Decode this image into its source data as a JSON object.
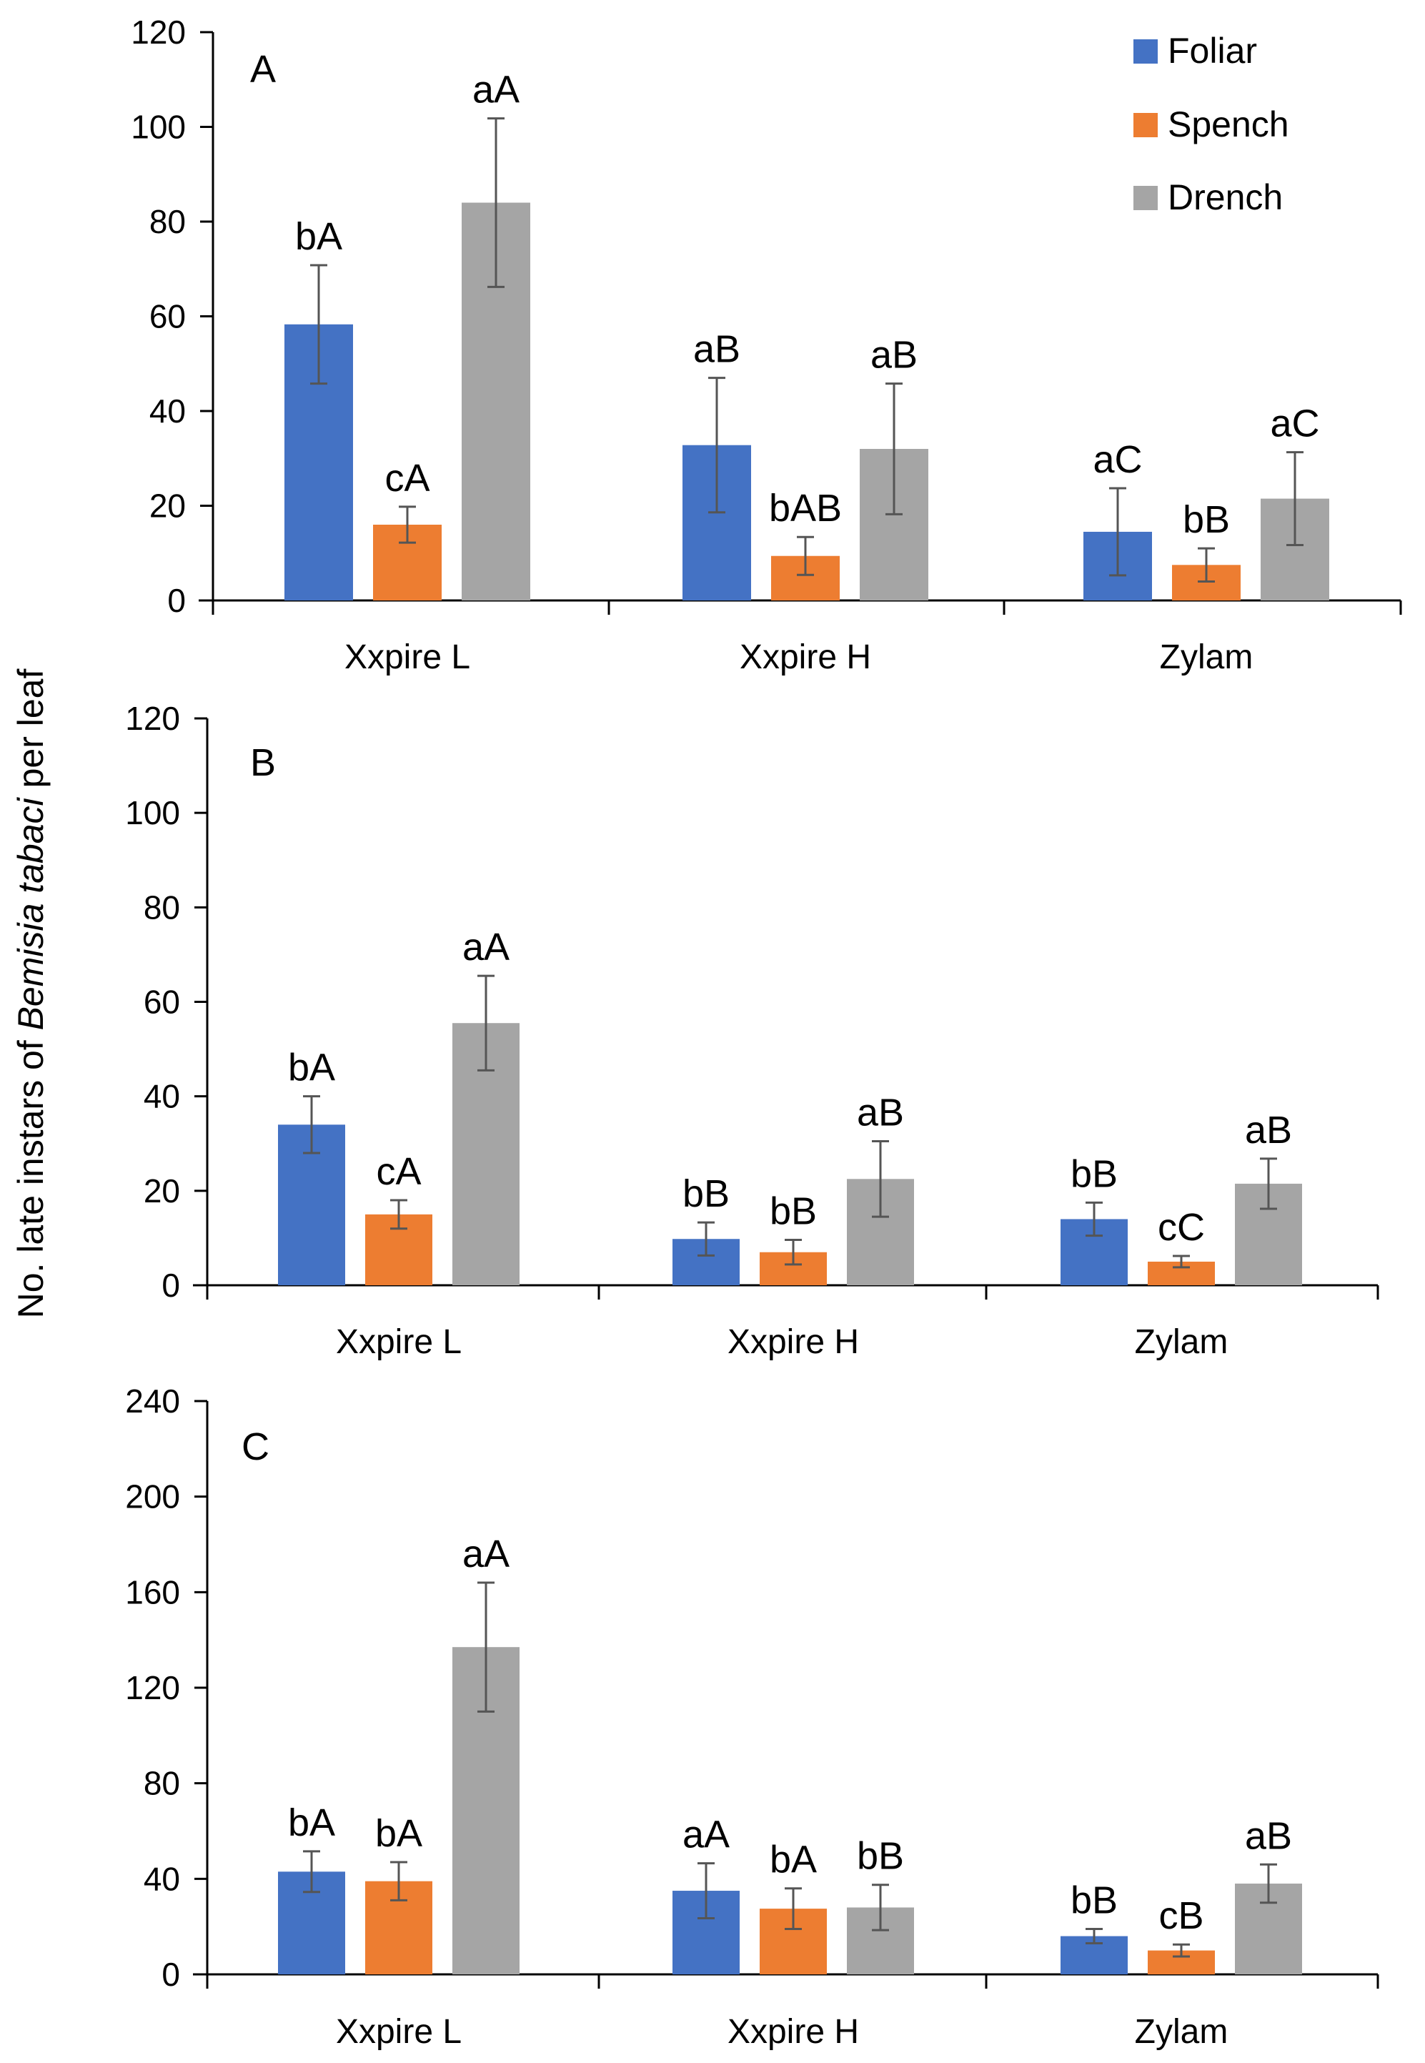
{
  "chart_data": {
    "type": "bar",
    "ylabel_parts": [
      "No. late instars of ",
      "Bemisia tabaci",
      " per leaf"
    ],
    "legend": {
      "placement": "top-right",
      "entries": [
        "Foliar",
        "Spench",
        "Drench"
      ]
    },
    "series_colors": [
      "#4472C4",
      "#ED7D31",
      "#A5A5A5"
    ],
    "panels": [
      {
        "label": "A",
        "categories": [
          "Xxpire L",
          "Xxpire H",
          "Zylam"
        ],
        "ylim": [
          0,
          120
        ],
        "yticks": [
          "0",
          "20",
          "40",
          "60",
          "80",
          "100",
          "120"
        ],
        "series": [
          {
            "name": "Foliar",
            "values": [
              58.3,
              32.8,
              14.5
            ],
            "errors": [
              12.5,
              14.2,
              9.2
            ],
            "letters": [
              "bA",
              "aB",
              "aC"
            ]
          },
          {
            "name": "Spench",
            "values": [
              16.0,
              9.4,
              7.5
            ],
            "errors": [
              3.8,
              4.0,
              3.5
            ],
            "letters": [
              "cA",
              "bAB",
              "bB"
            ]
          },
          {
            "name": "Drench",
            "values": [
              84.0,
              32.0,
              21.5
            ],
            "errors": [
              17.8,
              13.8,
              9.8
            ],
            "letters": [
              "aA",
              "aB",
              "aC"
            ]
          }
        ]
      },
      {
        "label": "B",
        "categories": [
          "Xxpire L",
          "Xxpire H",
          "Zylam"
        ],
        "ylim": [
          0,
          120
        ],
        "yticks": [
          "0",
          "20",
          "40",
          "60",
          "80",
          "100",
          "120"
        ],
        "series": [
          {
            "name": "Foliar",
            "values": [
              34.0,
              9.8,
              14.0
            ],
            "errors": [
              6.0,
              3.5,
              3.5
            ],
            "letters": [
              "bA",
              "bB",
              "bB"
            ]
          },
          {
            "name": "Spench",
            "values": [
              15.0,
              7.0,
              5.0
            ],
            "errors": [
              3.0,
              2.6,
              1.2
            ],
            "letters": [
              "cA",
              "bB",
              "cC"
            ]
          },
          {
            "name": "Drench",
            "values": [
              55.5,
              22.5,
              21.5
            ],
            "errors": [
              10.0,
              8.0,
              5.3
            ],
            "letters": [
              "aA",
              "aB",
              "aB"
            ]
          }
        ]
      },
      {
        "label": "C",
        "categories": [
          "Xxpire L",
          "Xxpire H",
          "Zylam"
        ],
        "ylim": [
          0,
          240
        ],
        "yticks": [
          "0",
          "40",
          "80",
          "120",
          "160",
          "200",
          "240"
        ],
        "series": [
          {
            "name": "Foliar",
            "values": [
              43.0,
              35.0,
              16.0
            ],
            "errors": [
              8.5,
              11.5,
              3.0
            ],
            "letters": [
              "bA",
              "aA",
              "bB"
            ]
          },
          {
            "name": "Spench",
            "values": [
              39.0,
              27.5,
              10.0
            ],
            "errors": [
              8.0,
              8.5,
              2.5
            ],
            "letters": [
              "bA",
              "bA",
              "cB"
            ]
          },
          {
            "name": "Drench",
            "values": [
              137.0,
              28.0,
              38.0
            ],
            "errors": [
              27.0,
              9.5,
              8.0
            ],
            "letters": [
              "aA",
              "bB",
              "aB"
            ]
          }
        ]
      }
    ]
  }
}
